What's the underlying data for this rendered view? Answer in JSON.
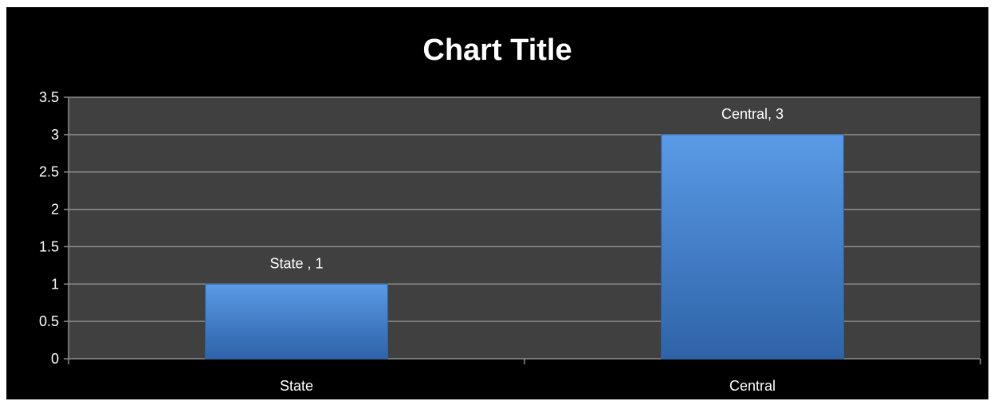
{
  "chart_data": {
    "type": "bar",
    "title": "Chart Title",
    "categories": [
      "State",
      "Central"
    ],
    "values": [
      1,
      3
    ],
    "data_labels": [
      "State , 1",
      "Central, 3"
    ],
    "yticks": [
      "0",
      "0.5",
      "1",
      "1.5",
      "2",
      "2.5",
      "3",
      "3.5"
    ],
    "ylim": [
      0,
      3.5
    ],
    "xlabel": "",
    "ylabel": "",
    "grid": true,
    "legend": "none",
    "colors": {
      "background": "#000000",
      "plot_area": "#404040",
      "bar": "#3f7fd0",
      "bar_light": "#5a9ae6",
      "bar_dark": "#2e63a8",
      "gridline": "#8c8c8c",
      "text": "#ffffff"
    }
  }
}
